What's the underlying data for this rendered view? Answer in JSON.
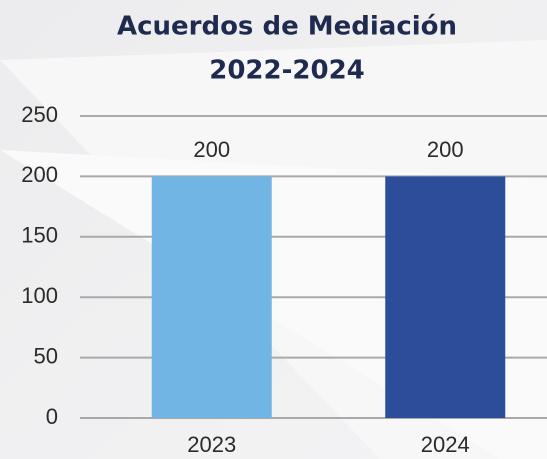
{
  "chart_data": {
    "type": "bar",
    "title": [
      "Acuerdos de Mediación",
      "2022-2024"
    ],
    "categories": [
      "2023",
      "2024"
    ],
    "values": [
      200,
      200
    ],
    "colors": [
      "#70b5e4",
      "#2c4e9a"
    ],
    "ylim": [
      0,
      250
    ],
    "yticks": [
      0,
      50,
      100,
      150,
      200,
      250
    ],
    "grid": true
  }
}
